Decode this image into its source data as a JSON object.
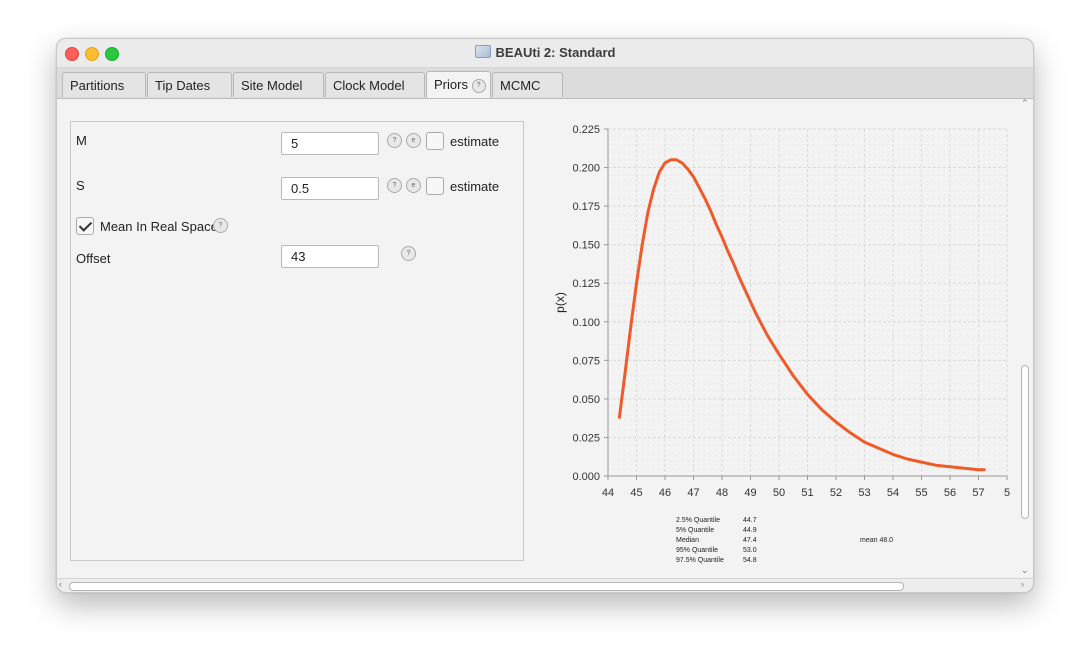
{
  "window": {
    "title": "BEAUti 2: Standard"
  },
  "tabs": [
    {
      "label": "Partitions"
    },
    {
      "label": "Tip Dates"
    },
    {
      "label": "Site Model"
    },
    {
      "label": "Clock Model"
    },
    {
      "label": "Priors",
      "active": true,
      "help": "?"
    },
    {
      "label": "MCMC"
    }
  ],
  "params": {
    "m": {
      "label": "M",
      "value": "5",
      "estimate_label": "estimate",
      "estimate_checked": false
    },
    "s": {
      "label": "S",
      "value": "0.5",
      "estimate_label": "estimate",
      "estimate_checked": false
    },
    "mean_real": {
      "label": "Mean In Real Space",
      "checked": true
    },
    "offset": {
      "label": "Offset",
      "value": "43"
    },
    "help": "?",
    "edit": "e"
  },
  "chart_data": {
    "type": "line",
    "title": "",
    "xlabel": "",
    "ylabel": "p(x)",
    "xlim": [
      44,
      58
    ],
    "ylim": [
      0,
      0.225
    ],
    "x_ticks": [
      "44",
      "45",
      "46",
      "47",
      "48",
      "49",
      "50",
      "51",
      "52",
      "53",
      "54",
      "55",
      "56",
      "57",
      "5"
    ],
    "y_ticks": [
      "0.000",
      "0.025",
      "0.050",
      "0.075",
      "0.100",
      "0.125",
      "0.150",
      "0.175",
      "0.200",
      "0.225"
    ],
    "grid": true,
    "line_color": "#f05a28",
    "series": [
      {
        "x": [
          44.4,
          44.6,
          44.8,
          45.0,
          45.2,
          45.4,
          45.6,
          45.8,
          46.0,
          46.2,
          46.4,
          46.6,
          46.8,
          47.0,
          47.2,
          47.4,
          47.6,
          47.8,
          48.0,
          48.2,
          48.4,
          48.6,
          48.8,
          49.0,
          49.2,
          49.4,
          49.6,
          49.8,
          50.0,
          50.5,
          51.0,
          51.5,
          52.0,
          52.5,
          53.0,
          53.5,
          54.0,
          54.5,
          55.0,
          55.5,
          56.0,
          56.5,
          57.0,
          57.2
        ],
        "y": [
          0.038,
          0.067,
          0.097,
          0.125,
          0.15,
          0.171,
          0.186,
          0.197,
          0.203,
          0.205,
          0.205,
          0.203,
          0.199,
          0.194,
          0.187,
          0.18,
          0.172,
          0.163,
          0.155,
          0.146,
          0.138,
          0.129,
          0.121,
          0.113,
          0.105,
          0.098,
          0.091,
          0.085,
          0.079,
          0.065,
          0.053,
          0.043,
          0.035,
          0.028,
          0.022,
          0.018,
          0.014,
          0.011,
          0.009,
          0.007,
          0.006,
          0.005,
          0.004,
          0.004
        ]
      }
    ]
  },
  "stats": {
    "rows": [
      {
        "label": "2.5% Quantile",
        "value": "44.7"
      },
      {
        "label": "5% Quantile",
        "value": "44.9"
      },
      {
        "label": "Median",
        "value": "47.4"
      },
      {
        "label": "95% Quantile",
        "value": "53.0"
      },
      {
        "label": "97.5% Quantile",
        "value": "54.8"
      }
    ],
    "mean": "mean 48.0"
  }
}
